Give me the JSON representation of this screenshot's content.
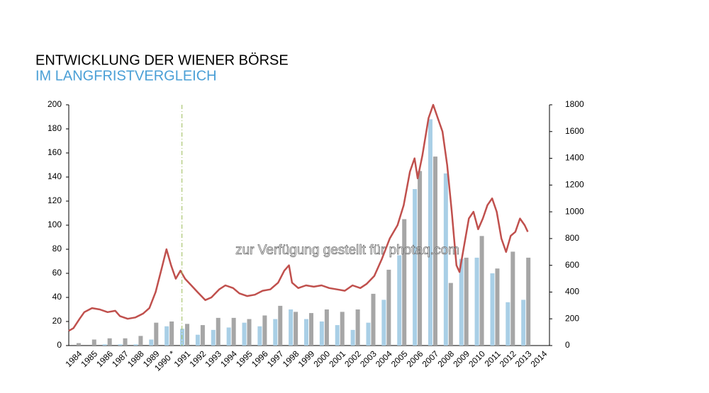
{
  "chart_data": {
    "type": "bar",
    "title": "ENTWICKLUNG DER WIENER BÖRSE",
    "subtitle": "IM LANGFRISTVERGLEICH",
    "watermark": "zur Verfügung gestellt für photaq.com",
    "categories": [
      "1984",
      "1985",
      "1986",
      "1987",
      "1988",
      "1989",
      "1990 *",
      "1991",
      "1992",
      "1993",
      "1994",
      "1995",
      "1996",
      "1997",
      "1998",
      "1999",
      "2000",
      "2001",
      "2002",
      "2003",
      "2004",
      "2005",
      "2006",
      "2007",
      "2008",
      "2009",
      "2010",
      "2011",
      "2012",
      "2013",
      "2014"
    ],
    "series": [
      {
        "color": "#a9cfe6",
        "values": [
          0,
          0,
          1,
          1,
          1,
          5,
          16,
          14,
          9,
          13,
          15,
          19,
          16,
          22,
          30,
          22,
          20,
          17,
          13,
          19,
          38,
          75,
          130,
          188,
          143,
          72,
          73,
          60,
          36,
          38,
          null
        ]
      },
      {
        "color": "#a6a6a6",
        "values": [
          2,
          5,
          6,
          6,
          8,
          19,
          20,
          18,
          17,
          23,
          23,
          22,
          25,
          33,
          28,
          27,
          30,
          28,
          30,
          43,
          63,
          105,
          145,
          157,
          52,
          73,
          91,
          64,
          78,
          73,
          null
        ]
      },
      {
        "type": "line",
        "axis": "y2",
        "color": "#c0504d",
        "x": [
          1984.0,
          1984.3,
          1984.7,
          1985.0,
          1985.5,
          1986.0,
          1986.5,
          1987.0,
          1987.3,
          1987.8,
          1988.3,
          1988.8,
          1989.2,
          1989.6,
          1990.0,
          1990.3,
          1990.6,
          1990.9,
          1991.2,
          1991.5,
          1991.9,
          1992.3,
          1992.8,
          1993.2,
          1993.7,
          1994.1,
          1994.6,
          1995.0,
          1995.5,
          1996.0,
          1996.5,
          1997.0,
          1997.5,
          1997.9,
          1998.2,
          1998.4,
          1998.8,
          1999.3,
          1999.8,
          2000.3,
          2000.8,
          2001.3,
          2001.8,
          2002.3,
          2002.8,
          2003.2,
          2003.7,
          2004.2,
          2004.7,
          2005.2,
          2005.6,
          2006.0,
          2006.3,
          2006.5,
          2006.8,
          2007.2,
          2007.5,
          2007.8,
          2008.1,
          2008.4,
          2008.7,
          2009.0,
          2009.2,
          2009.5,
          2009.8,
          2010.1,
          2010.4,
          2010.7,
          2011.0,
          2011.3,
          2011.6,
          2011.9,
          2012.2,
          2012.5,
          2012.8,
          2013.1,
          2013.4,
          2013.6
        ],
        "values": [
          110,
          130,
          200,
          250,
          280,
          270,
          250,
          260,
          220,
          200,
          210,
          240,
          280,
          400,
          580,
          720,
          600,
          500,
          560,
          500,
          450,
          400,
          340,
          360,
          420,
          450,
          430,
          390,
          370,
          380,
          410,
          420,
          470,
          560,
          600,
          470,
          430,
          450,
          440,
          450,
          430,
          420,
          410,
          450,
          430,
          460,
          520,
          650,
          800,
          900,
          1050,
          1300,
          1400,
          1250,
          1420,
          1700,
          1800,
          1700,
          1600,
          1350,
          1000,
          600,
          550,
          750,
          950,
          1000,
          870,
          950,
          1050,
          1100,
          1000,
          800,
          700,
          820,
          850,
          950,
          900,
          850
        ]
      }
    ],
    "xlim": [
      1984,
      2015
    ],
    "reference_line_x": 1991.3,
    "ylim": [
      0,
      200
    ],
    "yticks": [
      0,
      20,
      40,
      60,
      80,
      100,
      120,
      140,
      160,
      180,
      200
    ],
    "y2lim": [
      0,
      1800
    ],
    "y2ticks": [
      0,
      200,
      400,
      600,
      800,
      1000,
      1200,
      1400,
      1600,
      1800
    ]
  }
}
